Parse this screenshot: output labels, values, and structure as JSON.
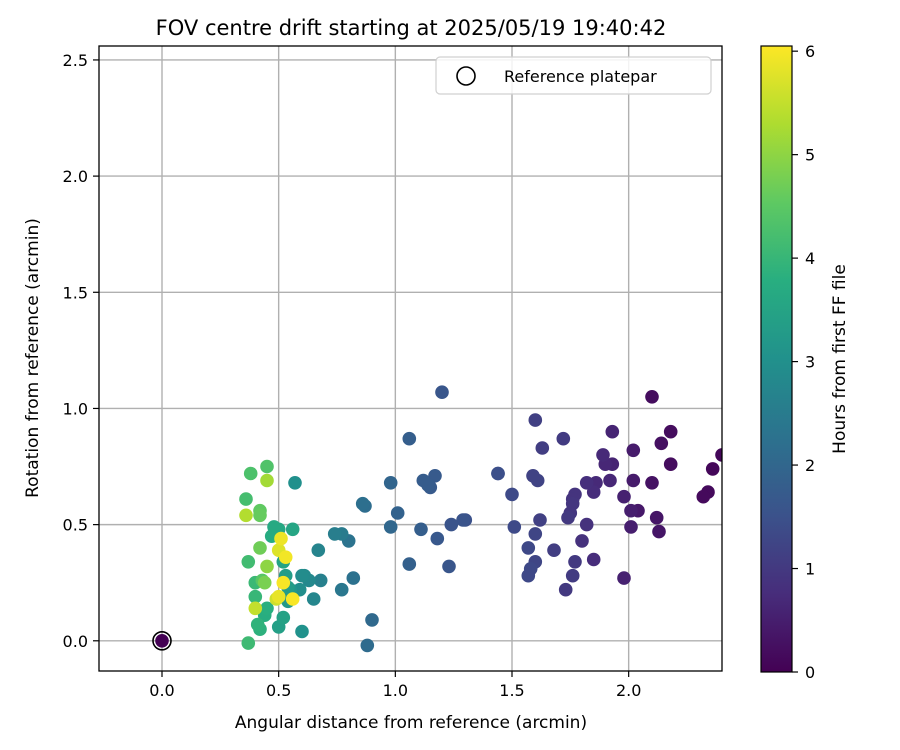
{
  "chart_data": {
    "type": "scatter",
    "title": "FOV centre drift starting at 2025/05/19 19:40:42",
    "xlabel": "Angular distance from reference (arcmin)",
    "ylabel": "Rotation from reference (arcmin)",
    "xlim": [
      -0.27,
      2.4
    ],
    "ylim": [
      -0.13,
      2.56
    ],
    "xticks": [
      "0.0",
      "0.5",
      "1.0",
      "1.5",
      "2.0"
    ],
    "yticks": [
      "0.0",
      "0.5",
      "1.0",
      "1.5",
      "2.0",
      "2.5"
    ],
    "grid": true,
    "legend": {
      "location": "upper right",
      "entries": [
        "Reference platepar"
      ]
    },
    "colorbar": {
      "label": "Hours from first FF file",
      "range": [
        0,
        6.05
      ],
      "ticks": [
        "0",
        "1",
        "2",
        "3",
        "4",
        "5",
        "6"
      ],
      "colormap": "viridis"
    },
    "reference_point": {
      "x": 0.0,
      "y": 0.0,
      "color_value": 0
    },
    "points": [
      [
        2.4,
        0.8,
        0.1
      ],
      [
        2.36,
        0.74,
        0.1
      ],
      [
        2.34,
        0.64,
        0.15
      ],
      [
        2.32,
        0.62,
        0.15
      ],
      [
        2.18,
        0.9,
        0.2
      ],
      [
        2.18,
        0.76,
        0.2
      ],
      [
        2.14,
        0.85,
        0.25
      ],
      [
        2.1,
        1.05,
        0.2
      ],
      [
        2.1,
        0.68,
        0.3
      ],
      [
        2.12,
        0.53,
        0.35
      ],
      [
        2.13,
        0.47,
        0.35
      ],
      [
        2.04,
        0.56,
        0.4
      ],
      [
        2.02,
        0.82,
        0.45
      ],
      [
        2.02,
        0.69,
        0.45
      ],
      [
        2.01,
        0.56,
        0.5
      ],
      [
        2.01,
        0.49,
        0.5
      ],
      [
        1.98,
        0.62,
        0.55
      ],
      [
        1.98,
        0.27,
        0.55
      ],
      [
        1.93,
        0.9,
        0.6
      ],
      [
        1.93,
        0.76,
        0.6
      ],
      [
        1.92,
        0.69,
        0.65
      ],
      [
        1.9,
        0.76,
        0.65
      ],
      [
        1.89,
        0.8,
        0.7
      ],
      [
        1.86,
        0.68,
        0.7
      ],
      [
        1.85,
        0.64,
        0.75
      ],
      [
        1.85,
        0.35,
        0.75
      ],
      [
        1.82,
        0.68,
        0.8
      ],
      [
        1.82,
        0.5,
        0.85
      ],
      [
        1.8,
        0.43,
        0.85
      ],
      [
        1.77,
        0.63,
        0.9
      ],
      [
        1.76,
        0.61,
        0.9
      ],
      [
        1.76,
        0.59,
        0.95
      ],
      [
        1.75,
        0.55,
        0.95
      ],
      [
        1.74,
        0.53,
        1.0
      ],
      [
        1.73,
        0.22,
        1.0
      ],
      [
        1.77,
        0.34,
        1.0
      ],
      [
        1.76,
        0.28,
        1.05
      ],
      [
        1.72,
        0.87,
        1.05
      ],
      [
        1.68,
        0.39,
        1.1
      ],
      [
        1.63,
        0.83,
        1.1
      ],
      [
        1.62,
        0.52,
        1.15
      ],
      [
        1.6,
        0.95,
        1.15
      ],
      [
        1.61,
        0.69,
        1.2
      ],
      [
        1.59,
        0.71,
        1.2
      ],
      [
        1.6,
        0.46,
        1.25
      ],
      [
        1.6,
        0.34,
        1.25
      ],
      [
        1.58,
        0.31,
        1.3
      ],
      [
        1.57,
        0.4,
        1.3
      ],
      [
        1.57,
        0.28,
        1.3
      ],
      [
        1.5,
        0.63,
        1.35
      ],
      [
        1.51,
        0.49,
        1.35
      ],
      [
        1.44,
        0.72,
        1.4
      ],
      [
        1.44,
        0.72,
        1.45
      ],
      [
        1.3,
        0.52,
        1.5
      ],
      [
        1.29,
        0.52,
        1.55
      ],
      [
        1.24,
        0.5,
        1.55
      ],
      [
        1.23,
        0.32,
        1.6
      ],
      [
        1.2,
        1.07,
        1.6
      ],
      [
        1.18,
        0.44,
        1.65
      ],
      [
        1.17,
        0.71,
        1.7
      ],
      [
        1.15,
        0.66,
        1.7
      ],
      [
        1.14,
        0.67,
        1.75
      ],
      [
        1.12,
        0.69,
        1.75
      ],
      [
        1.11,
        0.48,
        1.8
      ],
      [
        1.06,
        0.87,
        1.8
      ],
      [
        1.06,
        0.33,
        1.85
      ],
      [
        1.01,
        0.55,
        1.9
      ],
      [
        0.98,
        0.68,
        1.95
      ],
      [
        0.98,
        0.49,
        2.0
      ],
      [
        0.9,
        0.09,
        2.05
      ],
      [
        0.88,
        -0.02,
        2.1
      ],
      [
        0.87,
        0.58,
        2.15
      ],
      [
        0.86,
        0.59,
        2.2
      ],
      [
        0.82,
        0.27,
        2.25
      ],
      [
        0.8,
        0.43,
        2.3
      ],
      [
        0.77,
        0.22,
        2.4
      ],
      [
        0.77,
        0.46,
        2.5
      ],
      [
        0.74,
        0.46,
        2.55
      ],
      [
        0.68,
        0.26,
        2.6
      ],
      [
        0.67,
        0.39,
        2.7
      ],
      [
        0.65,
        0.18,
        2.75
      ],
      [
        0.63,
        0.26,
        2.8
      ],
      [
        0.61,
        0.28,
        2.85
      ],
      [
        0.6,
        0.28,
        2.9
      ],
      [
        0.59,
        0.22,
        2.95
      ],
      [
        0.57,
        0.68,
        3.0
      ],
      [
        0.6,
        0.04,
        3.05
      ],
      [
        0.55,
        0.22,
        3.1
      ],
      [
        0.55,
        0.2,
        3.15
      ],
      [
        0.54,
        0.17,
        3.2
      ],
      [
        0.54,
        0.23,
        3.3
      ],
      [
        0.53,
        0.28,
        3.35
      ],
      [
        0.5,
        0.06,
        3.4
      ],
      [
        0.52,
        0.1,
        3.45
      ],
      [
        0.52,
        0.34,
        3.5
      ],
      [
        0.56,
        0.48,
        3.55
      ],
      [
        0.5,
        0.48,
        3.6
      ],
      [
        0.48,
        0.49,
        3.65
      ],
      [
        0.47,
        0.45,
        3.7
      ],
      [
        0.44,
        0.11,
        3.75
      ],
      [
        0.45,
        0.14,
        3.8
      ],
      [
        0.42,
        0.05,
        3.85
      ],
      [
        0.41,
        0.07,
        3.9
      ],
      [
        0.4,
        0.19,
        4.0
      ],
      [
        0.4,
        0.25,
        4.05
      ],
      [
        0.37,
        -0.01,
        4.1
      ],
      [
        0.37,
        0.34,
        4.15
      ],
      [
        0.36,
        0.61,
        4.2
      ],
      [
        0.38,
        0.72,
        4.3
      ],
      [
        0.45,
        0.75,
        4.35
      ],
      [
        0.43,
        0.26,
        4.45
      ],
      [
        0.42,
        0.56,
        4.55
      ],
      [
        0.42,
        0.54,
        4.6
      ],
      [
        0.42,
        0.4,
        4.7
      ],
      [
        0.44,
        0.25,
        4.8
      ],
      [
        0.45,
        0.32,
        5.0
      ],
      [
        0.45,
        0.69,
        5.2
      ],
      [
        0.36,
        0.54,
        5.35
      ],
      [
        0.4,
        0.14,
        5.5
      ],
      [
        0.49,
        0.18,
        5.6
      ],
      [
        0.5,
        0.39,
        5.75
      ],
      [
        0.5,
        0.19,
        5.85
      ],
      [
        0.51,
        0.44,
        5.9
      ],
      [
        0.53,
        0.36,
        5.95
      ],
      [
        0.52,
        0.25,
        6.0
      ],
      [
        0.56,
        0.18,
        6.0
      ]
    ]
  }
}
